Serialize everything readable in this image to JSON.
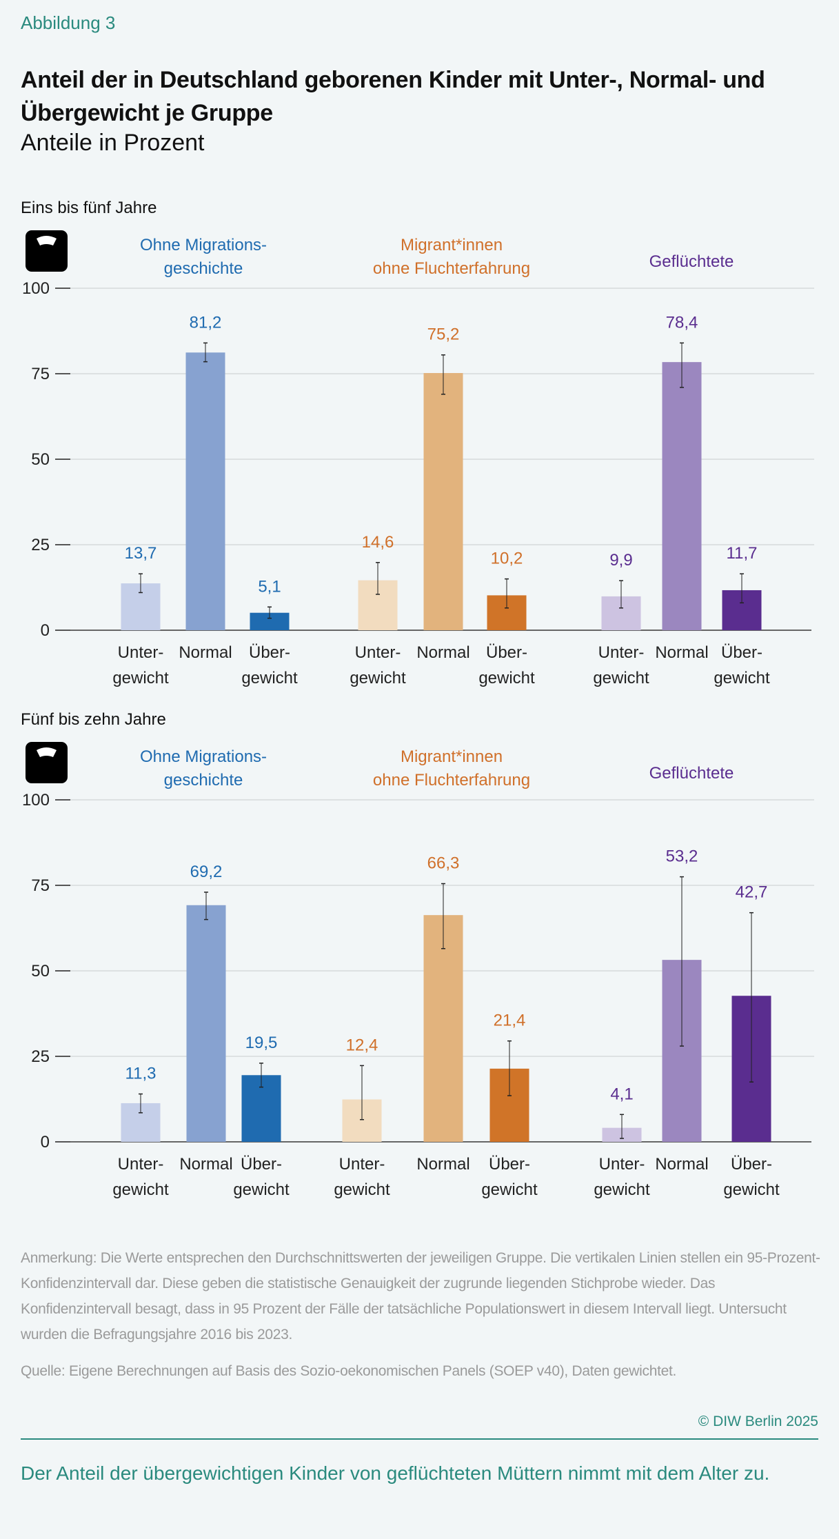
{
  "figure_label": "Abbildung 3",
  "title": "Anteil der in Deutschland geborenen Kinder mit Unter-, Normal- und Übergewicht je Gruppe",
  "subtitle": "Anteile in Prozent",
  "colors": {
    "accent": "#2a8a7e",
    "groups": {
      "ohne": {
        "label": "#1f6bb0",
        "bars": [
          "#c5cfe9",
          "#87a2d0",
          "#1f6bb0"
        ]
      },
      "migr": {
        "label": "#d0702a",
        "bars": [
          "#f2dcbf",
          "#e2b37d",
          "#d07428"
        ]
      },
      "gefl": {
        "label": "#5a2d8f",
        "bars": [
          "#cdc3e1",
          "#9b87bf",
          "#5a2d8f"
        ]
      }
    }
  },
  "icon": "bathroom-scale-icon",
  "chart_data": [
    {
      "type": "bar",
      "title": "Eins bis fünf Jahre",
      "ylim": [
        0,
        100
      ],
      "yticks": [
        0,
        25,
        50,
        75,
        100
      ],
      "grid": true,
      "categories": [
        [
          "Unter-",
          "gewicht"
        ],
        [
          "Normal"
        ],
        [
          "Über-",
          "gewicht"
        ]
      ],
      "series": [
        {
          "name": [
            "Ohne Migrations-",
            "geschichte"
          ],
          "key": "ohne",
          "values": [
            13.7,
            81.2,
            5.1
          ],
          "labels": [
            "13,7",
            "81,2",
            "5,1"
          ],
          "ci": [
            [
              11,
              16.5
            ],
            [
              78.5,
              84
            ],
            [
              3.5,
              6.8
            ]
          ]
        },
        {
          "name": [
            "Migrant*innen",
            "ohne Fluchterfahrung"
          ],
          "key": "migr",
          "values": [
            14.6,
            75.2,
            10.2
          ],
          "labels": [
            "14,6",
            "75,2",
            "10,2"
          ],
          "ci": [
            [
              10.5,
              19.8
            ],
            [
              69,
              80.5
            ],
            [
              6.5,
              15
            ]
          ]
        },
        {
          "name": [
            "Geflüchtete"
          ],
          "key": "gefl",
          "values": [
            9.9,
            78.4,
            11.7
          ],
          "labels": [
            "9,9",
            "78,4",
            "11,7"
          ],
          "ci": [
            [
              6.5,
              14.5
            ],
            [
              71,
              84
            ],
            [
              8,
              16.5
            ]
          ]
        }
      ]
    },
    {
      "type": "bar",
      "title": "Fünf bis zehn Jahre",
      "ylim": [
        0,
        100
      ],
      "yticks": [
        0,
        25,
        50,
        75,
        100
      ],
      "grid": true,
      "categories": [
        [
          "Unter-",
          "gewicht"
        ],
        [
          "Normal"
        ],
        [
          "Über-",
          "gewicht"
        ]
      ],
      "series": [
        {
          "name": [
            "Ohne Migrations-",
            "geschichte"
          ],
          "key": "ohne",
          "values": [
            11.3,
            69.2,
            19.5
          ],
          "labels": [
            "11,3",
            "69,2",
            "19,5"
          ],
          "ci": [
            [
              8.5,
              14
            ],
            [
              65,
              73
            ],
            [
              16,
              23
            ]
          ]
        },
        {
          "name": [
            "Migrant*innen",
            "ohne Fluchterfahrung"
          ],
          "key": "migr",
          "values": [
            12.4,
            66.3,
            21.4
          ],
          "labels": [
            "12,4",
            "66,3",
            "21,4"
          ],
          "ci": [
            [
              6.5,
              22.3
            ],
            [
              56.5,
              75.5
            ],
            [
              13.5,
              29.5
            ]
          ]
        },
        {
          "name": [
            "Geflüchtete"
          ],
          "key": "gefl",
          "values": [
            4.1,
            53.2,
            42.7
          ],
          "labels": [
            "4,1",
            "53,2",
            "42,7"
          ],
          "ci": [
            [
              1,
              8
            ],
            [
              28,
              77.5
            ],
            [
              17.5,
              67
            ]
          ]
        }
      ]
    }
  ],
  "notes": {
    "remark": "Anmerkung: Die Werte entsprechen den Durchschnittswerten der jeweiligen Gruppe. Die vertikalen Linien stellen ein 95-Prozent-Konfidenzintervall dar. Diese geben die statistische Genauigkeit der zugrunde liegenden Stichprobe wieder. Das Konfidenzintervall besagt, dass in 95 Prozent der Fälle der tatsächliche Populationswert in diesem Intervall liegt. Untersucht wurden die Befragungsjahre 2016 bis 2023.",
    "source": "Quelle: Eigene Berechnungen auf Basis des Sozio-oekonomischen Panels (SOEP v40), Daten gewichtet."
  },
  "copyright": "© DIW Berlin 2025",
  "takeaway": "Der Anteil der übergewichtigen Kinder von geflüchteten Müttern nimmt mit dem Alter zu."
}
